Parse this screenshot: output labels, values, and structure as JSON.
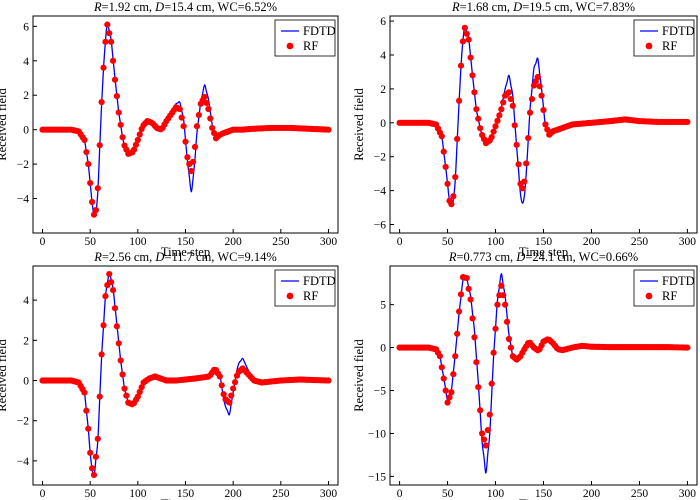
{
  "colors": {
    "fdtd": "#0000ff",
    "rf": "#ff0000"
  },
  "chart_data": [
    {
      "type": "line",
      "title_parts": [
        "R",
        "=1.92 cm, ",
        "D",
        "=15.4 cm, WC=6.52%"
      ],
      "xlabel": "Time step",
      "ylabel": "Received field",
      "xlim": [
        -10,
        310
      ],
      "ylim": [
        -6.0,
        6.6
      ],
      "xticks": [
        0,
        50,
        100,
        150,
        200,
        250,
        300
      ],
      "yticks": [
        -4,
        -2,
        0,
        2,
        4,
        6
      ],
      "legend": [
        "FDTD",
        "RF"
      ],
      "legend_position": "top-right",
      "series": [
        {
          "name": "FDTD",
          "style": "line",
          "x": [
            0,
            30,
            38,
            44,
            48,
            52,
            55,
            58,
            62,
            65,
            68,
            72,
            76,
            80,
            85,
            90,
            95,
            100,
            105,
            110,
            115,
            120,
            125,
            130,
            135,
            140,
            144,
            148,
            152,
            156,
            159,
            162,
            166,
            170,
            174,
            178,
            182,
            186,
            190,
            195,
            200,
            210,
            220,
            240,
            260,
            280,
            300
          ],
          "y": [
            0,
            0,
            -0.1,
            -0.6,
            -2.0,
            -4.2,
            -5.4,
            -3.6,
            1.5,
            4.6,
            6.2,
            5.2,
            3.0,
            1.0,
            -0.8,
            -1.4,
            -1.3,
            -0.6,
            0.2,
            0.5,
            0.4,
            0.1,
            0.0,
            0.5,
            1.0,
            1.5,
            1.6,
            0.6,
            -1.8,
            -3.6,
            -2.4,
            -0.2,
            1.6,
            2.6,
            1.8,
            0.3,
            -0.6,
            -0.4,
            -0.2,
            -0.1,
            0.0,
            0.0,
            0.05,
            0.1,
            0.1,
            0.05,
            0.0
          ]
        },
        {
          "name": "RF",
          "style": "dots",
          "x": [
            0,
            30,
            38,
            44,
            48,
            52,
            55,
            58,
            62,
            65,
            68,
            72,
            76,
            80,
            85,
            90,
            95,
            100,
            105,
            110,
            115,
            120,
            125,
            130,
            135,
            140,
            144,
            148,
            152,
            156,
            159,
            162,
            166,
            170,
            174,
            178,
            182,
            186,
            190,
            195,
            200,
            210,
            220,
            240,
            260,
            280,
            300
          ],
          "y": [
            0,
            0,
            -0.1,
            -0.6,
            -2.0,
            -4.2,
            -5.3,
            -3.4,
            1.6,
            4.6,
            6.1,
            5.1,
            2.9,
            1.0,
            -0.8,
            -1.4,
            -1.3,
            -0.6,
            0.2,
            0.5,
            0.4,
            0.1,
            0.0,
            0.5,
            0.9,
            1.3,
            1.2,
            0.2,
            -1.6,
            -2.4,
            -1.6,
            0.2,
            1.5,
            1.9,
            1.2,
            0.1,
            -0.5,
            -0.3,
            -0.2,
            -0.1,
            0.0,
            0.0,
            0.05,
            0.1,
            0.1,
            0.05,
            0.0
          ]
        }
      ]
    },
    {
      "type": "line",
      "title_parts": [
        "R",
        "=1.68 cm, ",
        "D",
        "=19.5 cm, WC=7.83%"
      ],
      "xlabel": "Time step",
      "ylabel": "Received field",
      "xlim": [
        -10,
        310
      ],
      "ylim": [
        -6.5,
        6.3
      ],
      "xticks": [
        0,
        50,
        100,
        150,
        200,
        250,
        300
      ],
      "yticks": [
        -6,
        -4,
        -2,
        0,
        2,
        4,
        6
      ],
      "legend": [
        "FDTD",
        "RF"
      ],
      "legend_position": "top-right",
      "series": [
        {
          "name": "FDTD",
          "style": "line",
          "x": [
            0,
            30,
            38,
            44,
            48,
            52,
            55,
            58,
            62,
            65,
            68,
            72,
            76,
            80,
            85,
            90,
            95,
            100,
            105,
            110,
            114,
            118,
            122,
            126,
            129,
            132,
            136,
            140,
            144,
            148,
            152,
            156,
            160,
            170,
            180,
            200,
            220,
            235,
            250,
            270,
            290,
            300
          ],
          "y": [
            0,
            0,
            -0.1,
            -0.8,
            -2.6,
            -4.6,
            -5.1,
            -3.4,
            1.2,
            4.4,
            5.7,
            5.0,
            2.8,
            0.8,
            -0.6,
            -1.2,
            -1.0,
            -0.2,
            0.6,
            2.0,
            2.8,
            1.6,
            -1.4,
            -4.2,
            -5.0,
            -3.0,
            0.8,
            3.2,
            3.8,
            2.0,
            -0.2,
            -0.8,
            -0.6,
            -0.3,
            -0.1,
            0.0,
            0.1,
            0.2,
            0.1,
            0.05,
            0.05,
            0.05
          ]
        },
        {
          "name": "RF",
          "style": "dots",
          "x": [
            0,
            30,
            38,
            44,
            48,
            52,
            55,
            58,
            62,
            65,
            68,
            72,
            76,
            80,
            85,
            90,
            95,
            100,
            105,
            110,
            114,
            118,
            122,
            126,
            129,
            132,
            136,
            140,
            144,
            148,
            152,
            156,
            160,
            170,
            180,
            200,
            220,
            235,
            250,
            270,
            290,
            300
          ],
          "y": [
            0,
            0,
            -0.1,
            -0.8,
            -2.6,
            -4.6,
            -4.9,
            -3.2,
            1.3,
            4.4,
            5.6,
            4.9,
            2.8,
            0.8,
            -0.6,
            -1.2,
            -1.0,
            -0.2,
            0.6,
            1.6,
            1.8,
            1.0,
            -1.3,
            -3.6,
            -4.0,
            -2.4,
            0.6,
            2.2,
            2.7,
            1.6,
            -0.1,
            -0.7,
            -0.5,
            -0.3,
            -0.1,
            0.0,
            0.1,
            0.2,
            0.1,
            0.05,
            0.05,
            0.05
          ]
        }
      ]
    },
    {
      "type": "line",
      "title_parts": [
        "R",
        "=2.56 cm, ",
        "D",
        "=11.7 cm, WC=9.14%"
      ],
      "xlabel": "Time step",
      "ylabel": "Received field",
      "xlim": [
        -10,
        310
      ],
      "ylim": [
        -5.2,
        5.7
      ],
      "xticks": [
        0,
        50,
        100,
        150,
        200,
        250,
        300
      ],
      "yticks": [
        -4,
        -2,
        0,
        2,
        4
      ],
      "legend": [
        "FDTD",
        "RF"
      ],
      "legend_position": "top-right",
      "series": [
        {
          "name": "FDTD",
          "style": "line",
          "x": [
            0,
            30,
            38,
            44,
            48,
            51,
            54,
            58,
            62,
            66,
            70,
            74,
            78,
            82,
            86,
            90,
            95,
            100,
            106,
            112,
            118,
            124,
            130,
            140,
            160,
            175,
            181,
            186,
            191,
            196,
            200,
            205,
            210,
            216,
            222,
            230,
            250,
            270,
            300
          ],
          "y": [
            0,
            0,
            -0.1,
            -0.6,
            -2.4,
            -4.2,
            -4.8,
            -3.0,
            1.2,
            4.2,
            5.4,
            4.6,
            2.8,
            1.0,
            -0.4,
            -1.1,
            -1.2,
            -0.8,
            -0.1,
            0.1,
            0.2,
            0.1,
            0.0,
            0.0,
            0.1,
            0.2,
            0.6,
            0.3,
            -1.2,
            -1.7,
            -0.6,
            0.8,
            1.1,
            0.5,
            0.0,
            -0.1,
            0.0,
            0.05,
            0.0
          ]
        },
        {
          "name": "RF",
          "style": "dots",
          "x": [
            0,
            30,
            38,
            44,
            48,
            51,
            54,
            58,
            62,
            66,
            70,
            74,
            78,
            82,
            86,
            90,
            95,
            100,
            106,
            112,
            118,
            124,
            130,
            140,
            160,
            175,
            181,
            186,
            191,
            196,
            200,
            205,
            210,
            216,
            222,
            230,
            250,
            270,
            300
          ],
          "y": [
            0,
            0,
            -0.1,
            -0.6,
            -2.4,
            -4.2,
            -4.7,
            -2.9,
            1.3,
            4.2,
            5.3,
            4.5,
            2.7,
            1.0,
            -0.4,
            -1.1,
            -1.2,
            -0.8,
            -0.1,
            0.1,
            0.2,
            0.1,
            0.0,
            0.0,
            0.1,
            0.2,
            0.6,
            0.2,
            -0.9,
            -1.1,
            -0.4,
            0.4,
            0.6,
            0.3,
            0.0,
            -0.1,
            0.0,
            0.05,
            0.0
          ]
        }
      ]
    },
    {
      "type": "line",
      "title_parts": [
        "R",
        "=0.773 cm, ",
        "D",
        "=24.1 cm, WC=0.66%"
      ],
      "xlabel": "Time step",
      "ylabel": "Received field",
      "xlim": [
        -10,
        310
      ],
      "ylim": [
        -16.0,
        9.5
      ],
      "xticks": [
        0,
        50,
        100,
        150,
        200,
        250,
        300
      ],
      "yticks": [
        -15,
        -10,
        -5,
        0,
        5
      ],
      "legend": [
        "FDTD",
        "RF"
      ],
      "legend_position": "top-right",
      "series": [
        {
          "name": "FDTD",
          "style": "line",
          "x": [
            0,
            30,
            38,
            42,
            46,
            50,
            54,
            58,
            62,
            66,
            70,
            74,
            78,
            82,
            86,
            90,
            94,
            98,
            102,
            106,
            110,
            114,
            118,
            122,
            126,
            130,
            135,
            140,
            145,
            150,
            155,
            160,
            165,
            170,
            180,
            190,
            200,
            220,
            240,
            260,
            280,
            300
          ],
          "y": [
            0,
            0,
            -0.2,
            -1.0,
            -3.5,
            -6.2,
            -5.0,
            -0.8,
            4.0,
            7.8,
            8.0,
            6.0,
            2.0,
            -4.0,
            -11.0,
            -14.6,
            -10.0,
            -1.0,
            5.5,
            8.6,
            6.0,
            1.5,
            -1.0,
            -1.4,
            -1.0,
            -0.2,
            0.8,
            0.0,
            -0.5,
            0.8,
            1.2,
            0.6,
            -0.2,
            -0.3,
            0.0,
            0.2,
            0.1,
            0.05,
            0.05,
            0.05,
            0.05,
            0.0
          ]
        },
        {
          "name": "RF",
          "style": "dots",
          "x": [
            0,
            30,
            38,
            42,
            46,
            50,
            54,
            58,
            62,
            66,
            70,
            74,
            78,
            82,
            86,
            90,
            94,
            98,
            102,
            106,
            110,
            114,
            118,
            122,
            126,
            130,
            135,
            140,
            145,
            150,
            155,
            160,
            165,
            170,
            180,
            190,
            200,
            220,
            240,
            260,
            280,
            300
          ],
          "y": [
            0,
            0,
            -0.2,
            -1.0,
            -3.6,
            -6.4,
            -5.2,
            -1.0,
            4.2,
            8.2,
            8.1,
            5.6,
            1.2,
            -4.6,
            -10.0,
            -11.4,
            -7.8,
            -0.6,
            5.0,
            7.2,
            5.0,
            1.0,
            -1.0,
            -1.4,
            -1.0,
            -0.2,
            0.7,
            0.0,
            -0.4,
            0.7,
            1.0,
            0.5,
            -0.2,
            -0.3,
            0.0,
            0.2,
            0.1,
            0.05,
            0.05,
            0.05,
            0.05,
            0.0
          ]
        }
      ]
    }
  ]
}
